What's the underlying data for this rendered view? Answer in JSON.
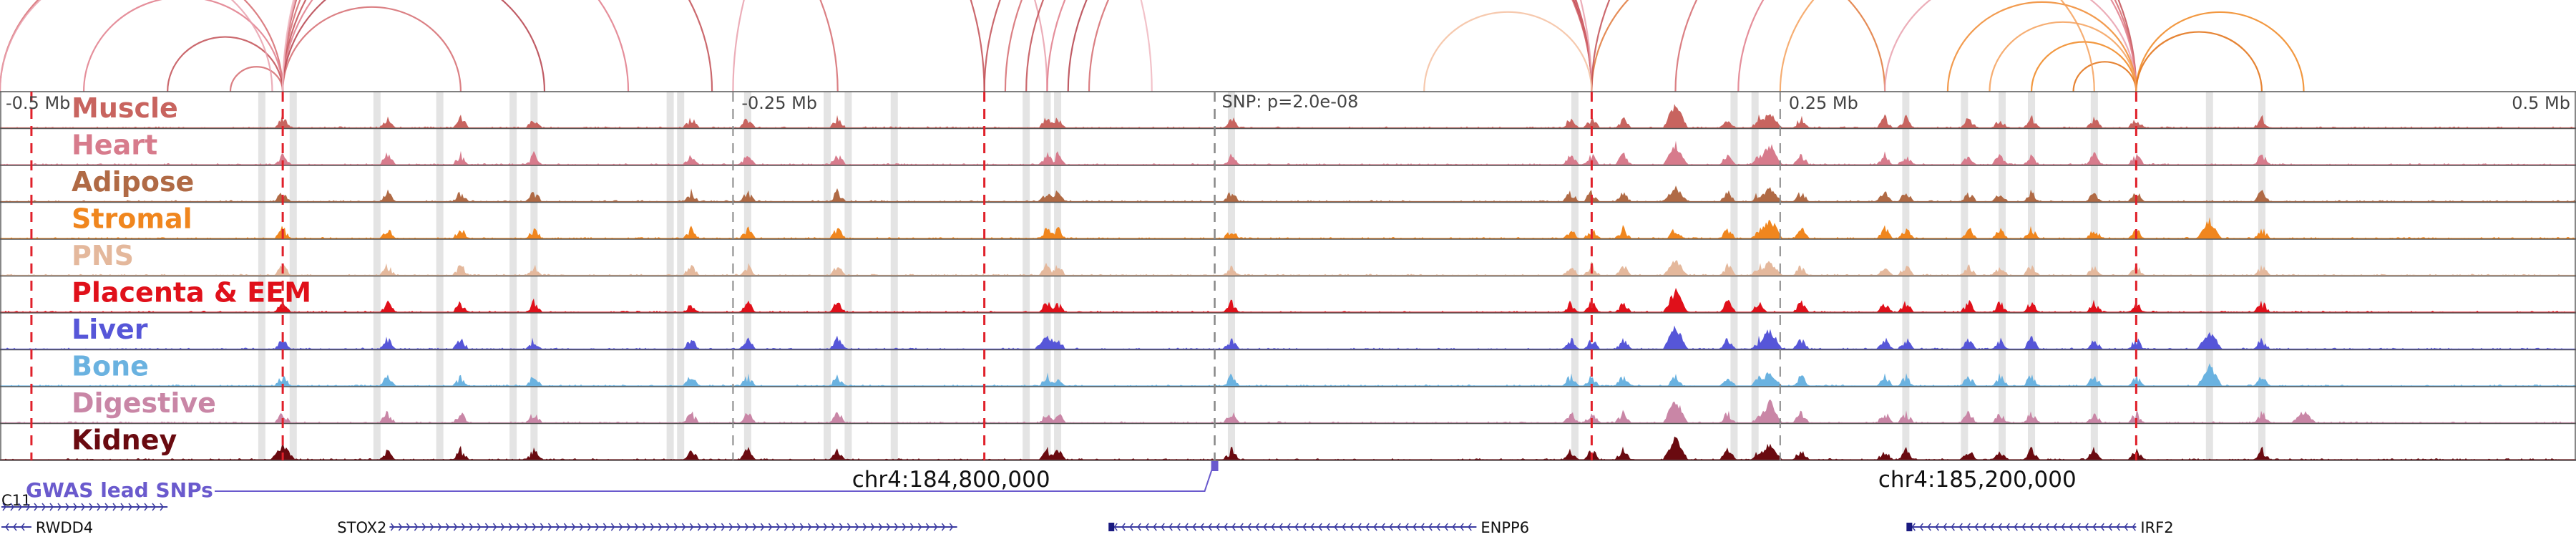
{
  "chart_data": {
    "type": "genome-browser",
    "region": {
      "start_mb": -0.6,
      "end_mb": 0.63
    },
    "axis": {
      "ticks": [
        {
          "label": "-0.5 Mb",
          "pos": -0.5
        },
        {
          "label": "-0.25 Mb",
          "pos": -0.25
        },
        {
          "label": "0.25 Mb",
          "pos": 0.25
        },
        {
          "label": "0.5 Mb",
          "pos": 0.5
        }
      ]
    },
    "snp_label": "SNP: p=2.0e-08",
    "snp_pos": -0.02,
    "tracks": [
      {
        "name": "Muscle",
        "color": "#c8645f"
      },
      {
        "name": "Heart",
        "color": "#d77b8c"
      },
      {
        "name": "Adipose",
        "color": "#b06a45"
      },
      {
        "name": "Stromal",
        "color": "#f0861e"
      },
      {
        "name": "PNS",
        "color": "#e4b89c"
      },
      {
        "name": "Placenta & EEM",
        "color": "#e0101a"
      },
      {
        "name": "Liver",
        "color": "#5656d8"
      },
      {
        "name": "Bone",
        "color": "#6ab2e0"
      },
      {
        "name": "Digestive",
        "color": "#c986a6"
      },
      {
        "name": "Kidney",
        "color": "#6a0a10"
      }
    ],
    "anchors": [
      -0.585,
      -0.465,
      -0.13,
      0.16,
      0.42
    ],
    "coordinates": [
      {
        "label": "chr4:184,800,000",
        "pos": -0.2
      },
      {
        "label": "chr4:185,200,000",
        "pos": 0.29
      }
    ],
    "gwas": {
      "label": "GWAS lead SNPs",
      "pos": -0.02
    },
    "genes": [
      {
        "name": "C11",
        "start": -0.6,
        "end": -0.52,
        "strand": "+",
        "label_side": "left",
        "row": 0
      },
      {
        "name": "RWDD4",
        "start": -0.6,
        "end": -0.585,
        "strand": "-",
        "label_side": "right",
        "row": 1
      },
      {
        "name": "STOX2",
        "start": -0.414,
        "end": -0.143,
        "strand": "+",
        "label_side": "left",
        "row": 1
      },
      {
        "name": "ENPP6",
        "start": -0.07,
        "end": 0.105,
        "strand": "-",
        "label_side": "right",
        "row": 1
      },
      {
        "name": "IRF2",
        "start": 0.311,
        "end": 0.42,
        "strand": "-",
        "label_side": "right",
        "row": 1
      }
    ],
    "loops": [
      {
        "a": -0.6,
        "b": -0.465,
        "color": "#d56a6f"
      },
      {
        "a": -0.56,
        "b": -0.465,
        "color": "#e07b8a"
      },
      {
        "a": -0.52,
        "b": -0.465,
        "color": "#c24f55"
      },
      {
        "a": -0.49,
        "b": -0.465,
        "color": "#d56a6f"
      },
      {
        "a": -0.6,
        "b": -0.47,
        "color": "#e9a0ad"
      },
      {
        "a": -0.465,
        "b": -0.13,
        "color": "#c24f55"
      },
      {
        "a": -0.465,
        "b": -0.2,
        "color": "#d56a6f"
      },
      {
        "a": -0.465,
        "b": -0.26,
        "color": "#c24f55"
      },
      {
        "a": -0.465,
        "b": -0.3,
        "color": "#e07b8a"
      },
      {
        "a": -0.465,
        "b": -0.34,
        "color": "#b5404a"
      },
      {
        "a": -0.465,
        "b": -0.38,
        "color": "#d56a6f"
      },
      {
        "a": -0.465,
        "b": -0.1,
        "color": "#e9a0ad"
      },
      {
        "a": -0.465,
        "b": -0.05,
        "color": "#f0b7c0"
      },
      {
        "a": -0.13,
        "b": 0.16,
        "color": "#c24f55"
      },
      {
        "a": -0.12,
        "b": 0.16,
        "color": "#d56a6f"
      },
      {
        "a": -0.11,
        "b": 0.16,
        "color": "#c24f55"
      },
      {
        "a": -0.1,
        "b": 0.16,
        "color": "#e07b8a"
      },
      {
        "a": -0.09,
        "b": 0.16,
        "color": "#b5404a"
      },
      {
        "a": -0.08,
        "b": 0.16,
        "color": "#d56a6f"
      },
      {
        "a": -0.25,
        "b": 0.16,
        "color": "#e9a0ad"
      },
      {
        "a": 0.16,
        "b": 0.3,
        "color": "#e0783a"
      },
      {
        "a": 0.16,
        "b": 0.42,
        "color": "#c24f55"
      },
      {
        "a": 0.2,
        "b": 0.42,
        "color": "#d56a6f"
      },
      {
        "a": 0.23,
        "b": 0.42,
        "color": "#e07b8a"
      },
      {
        "a": 0.3,
        "b": 0.42,
        "color": "#e9a0ad"
      },
      {
        "a": 0.33,
        "b": 0.42,
        "color": "#f08a30"
      },
      {
        "a": 0.37,
        "b": 0.42,
        "color": "#f0861e"
      },
      {
        "a": 0.39,
        "b": 0.42,
        "color": "#e26f10"
      },
      {
        "a": 0.42,
        "b": 0.5,
        "color": "#f0861e"
      },
      {
        "a": 0.42,
        "b": 0.48,
        "color": "#e26f10"
      },
      {
        "a": 0.35,
        "b": 0.42,
        "color": "#f5a05a"
      },
      {
        "a": 0.08,
        "b": 0.16,
        "color": "#f5c0a0"
      },
      {
        "a": 0.25,
        "b": 0.4,
        "color": "#f5a05a"
      }
    ],
    "highlights": [
      -0.475,
      -0.46,
      -0.42,
      -0.39,
      -0.355,
      -0.345,
      -0.28,
      -0.275,
      -0.243,
      -0.205,
      -0.195,
      -0.173,
      -0.11,
      -0.1,
      -0.095,
      -0.012,
      0.152,
      0.228,
      0.238,
      0.31,
      0.338,
      0.356,
      0.37,
      0.4,
      0.455,
      0.48
    ]
  }
}
